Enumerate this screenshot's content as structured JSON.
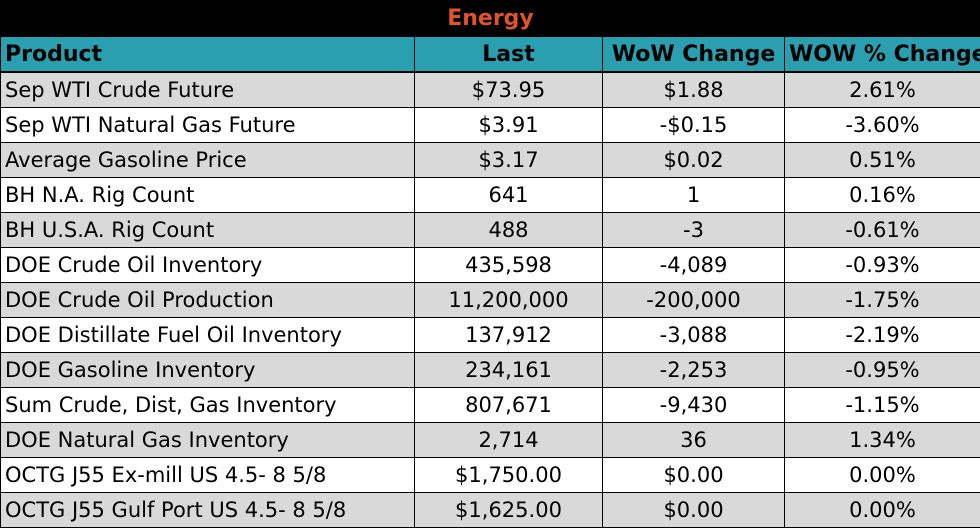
{
  "title": "Energy",
  "columns": [
    "Product",
    "Last",
    "WoW Change",
    "WOW % Change"
  ],
  "rows": [
    {
      "product": "Sep WTI Crude Future",
      "last": "$73.95",
      "wow_change": "$1.88",
      "wow_pct": "2.61%"
    },
    {
      "product": "Sep WTI Natural Gas Future",
      "last": "$3.91",
      "wow_change": "-$0.15",
      "wow_pct": "-3.60%"
    },
    {
      "product": "Average Gasoline Price",
      "last": "$3.17",
      "wow_change": "$0.02",
      "wow_pct": "0.51%"
    },
    {
      "product": "BH N.A. Rig Count",
      "last": "641",
      "wow_change": "1",
      "wow_pct": "0.16%"
    },
    {
      "product": "BH U.S.A. Rig Count",
      "last": "488",
      "wow_change": "-3",
      "wow_pct": "-0.61%"
    },
    {
      "product": "DOE Crude Oil Inventory",
      "last": "435,598",
      "wow_change": "-4,089",
      "wow_pct": "-0.93%"
    },
    {
      "product": "DOE Crude Oil Production",
      "last": "11,200,000",
      "wow_change": "-200,000",
      "wow_pct": "-1.75%"
    },
    {
      "product": "DOE Distillate Fuel Oil Inventory",
      "last": "137,912",
      "wow_change": "-3,088",
      "wow_pct": "-2.19%"
    },
    {
      "product": "DOE Gasoline Inventory",
      "last": "234,161",
      "wow_change": "-2,253",
      "wow_pct": "-0.95%"
    },
    {
      "product": "Sum Crude, Dist, Gas Inventory",
      "last": "807,671",
      "wow_change": "-9,430",
      "wow_pct": "-1.15%"
    },
    {
      "product": "DOE Natural Gas Inventory",
      "last": "2,714",
      "wow_change": "36",
      "wow_pct": "1.34%"
    },
    {
      "product": "OCTG J55 Ex-mill US 4.5- 8 5/8",
      "last": "$1,750.00",
      "wow_change": "$0.00",
      "wow_pct": "0.00%"
    },
    {
      "product": "OCTG J55 Gulf Port US 4.5- 8 5/8",
      "last": "$1,625.00",
      "wow_change": "$0.00",
      "wow_pct": "0.00%"
    }
  ],
  "colors": {
    "title_bg": "#000000",
    "title_text": "#e0542a",
    "header_bg": "#2a9fb0",
    "row_shade": "#d9d9d9",
    "row_plain": "#ffffff"
  }
}
